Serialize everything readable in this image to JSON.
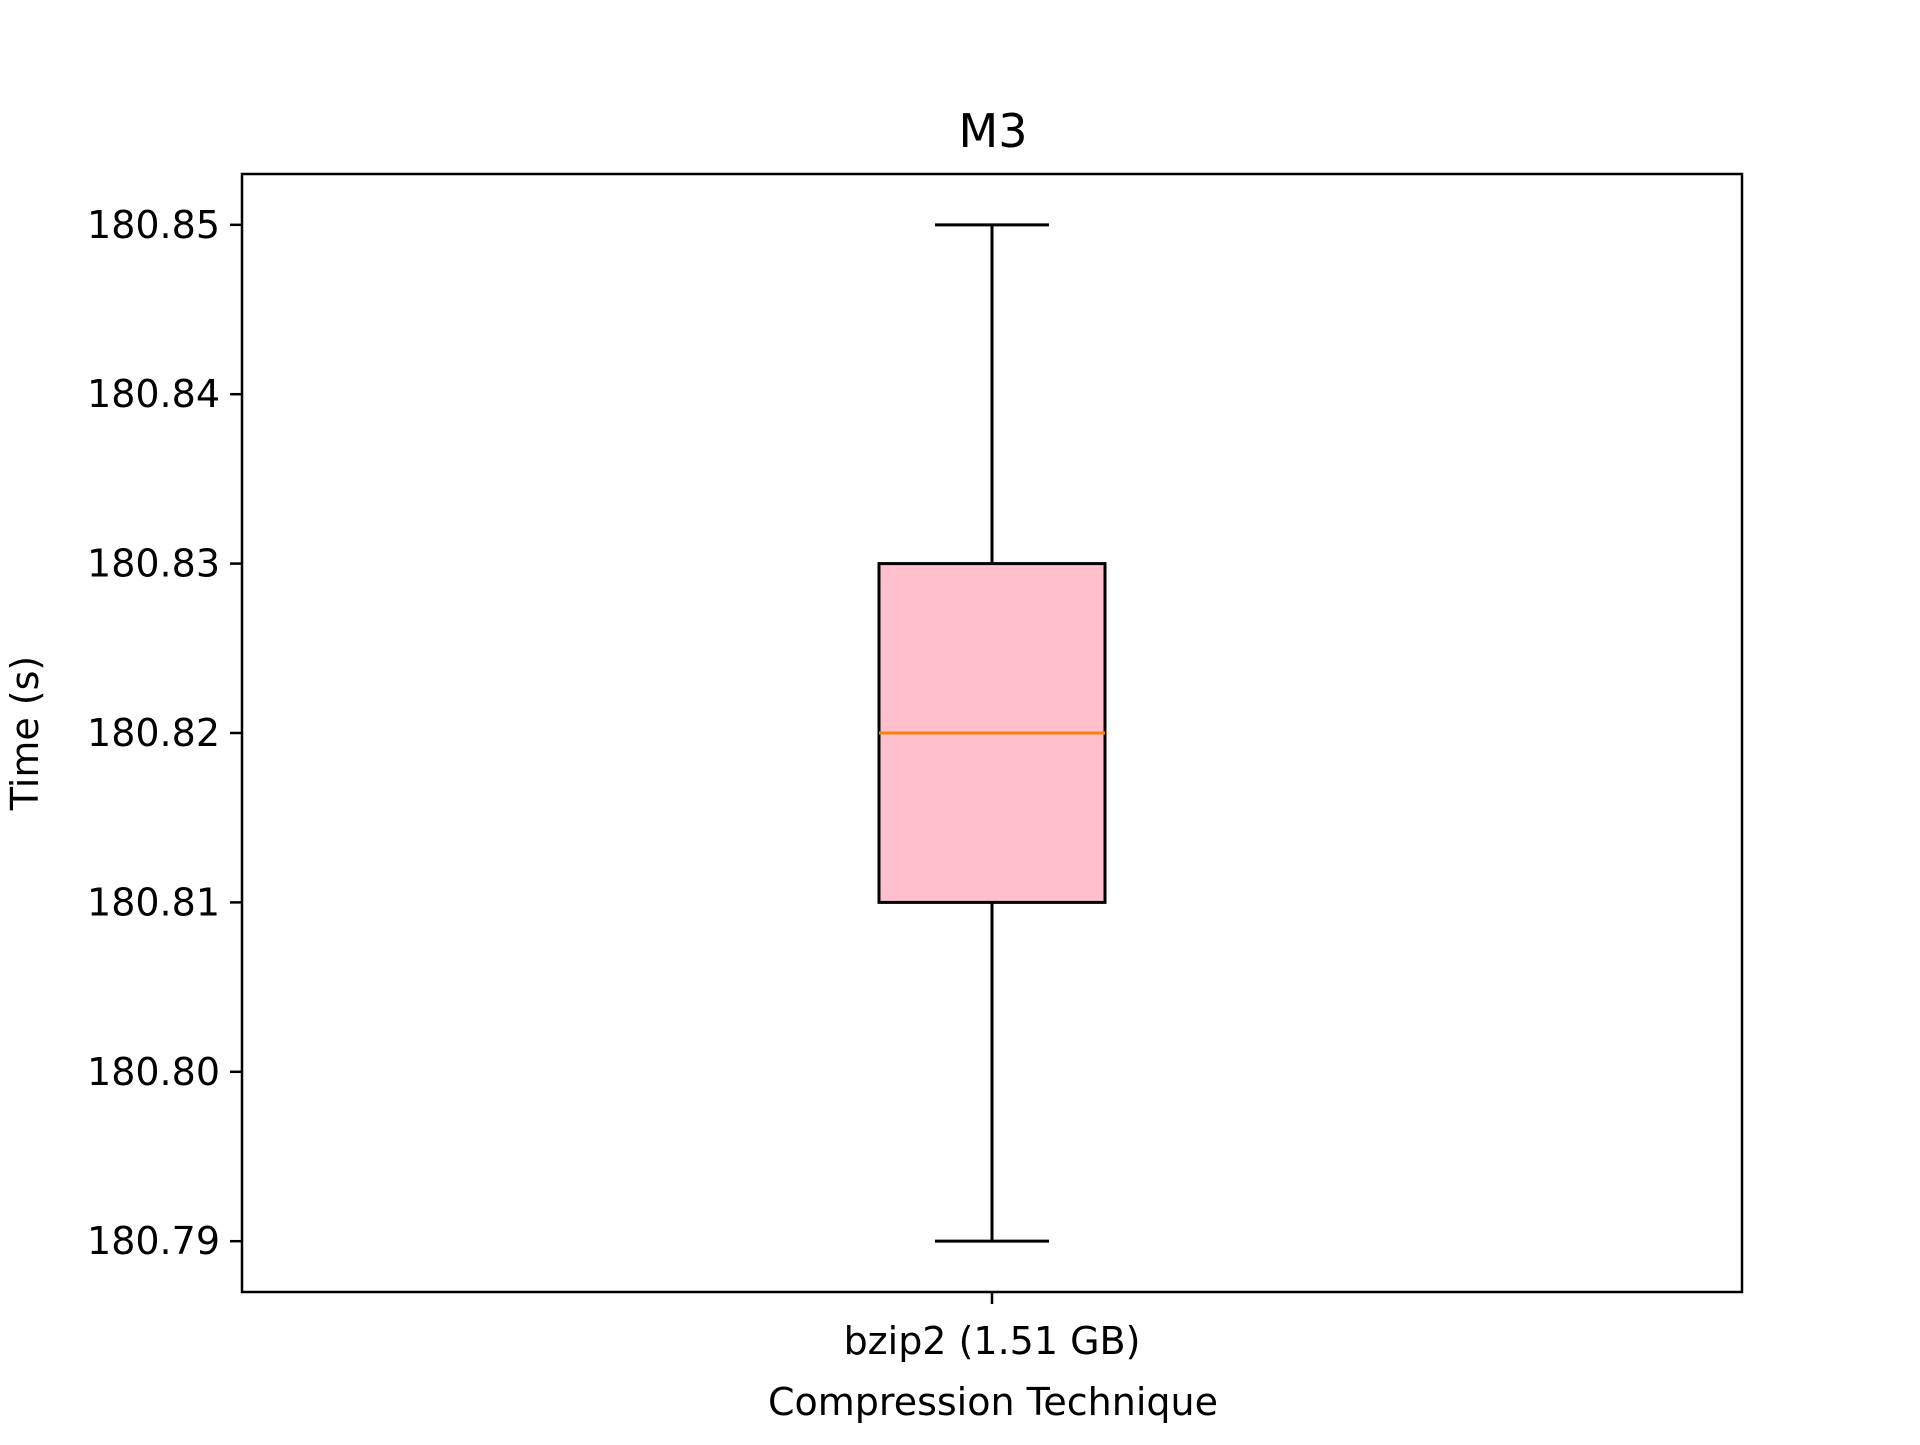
{
  "chart_data": {
    "type": "box",
    "title": "M3",
    "xlabel": "Compression Technique",
    "ylabel": "Time (s)",
    "ylim": [
      180.787,
      180.853
    ],
    "yticks": [
      "180.79",
      "180.80",
      "180.81",
      "180.82",
      "180.83",
      "180.84",
      "180.85"
    ],
    "categories": [
      "bzip2 (1.51 GB)"
    ],
    "boxes": [
      {
        "category": "bzip2 (1.51 GB)",
        "whisker_low": 180.79,
        "q1": 180.81,
        "median": 180.82,
        "q3": 180.83,
        "whisker_high": 180.85
      }
    ],
    "grid": false,
    "colors": {
      "box_fill": "#ffc0cb",
      "median_line": "#ff7f0e",
      "lines": "#000000"
    }
  }
}
